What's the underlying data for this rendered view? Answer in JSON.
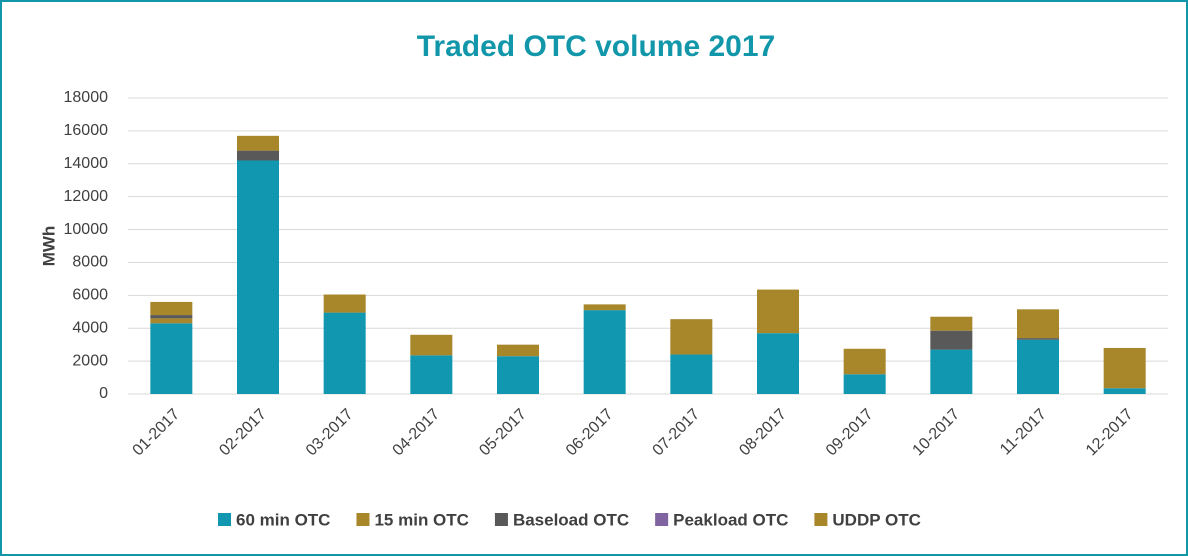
{
  "chart_data": {
    "type": "stacked_bar",
    "title": "Traded OTC volume 2017",
    "y_label": "MWh",
    "categories": [
      "01-2017",
      "02-2017",
      "03-2017",
      "04-2017",
      "05-2017",
      "06-2017",
      "07-2017",
      "08-2017",
      "09-2017",
      "10-2017",
      "11-2017",
      "12-2017"
    ],
    "series": [
      {
        "name": "60 min OTC",
        "color": "#1197b0",
        "values": [
          4300,
          14200,
          4950,
          2350,
          2300,
          5100,
          2400,
          3700,
          1200,
          2700,
          3300,
          350
        ]
      },
      {
        "name": "15 min OTC",
        "color": "#a8862a",
        "values": [
          300,
          0,
          1100,
          1250,
          700,
          350,
          2150,
          2650,
          1550,
          0,
          0,
          2450
        ]
      },
      {
        "name": "Baseload OTC",
        "color": "#595959",
        "values": [
          200,
          600,
          0,
          0,
          0,
          0,
          0,
          0,
          0,
          1150,
          100,
          0
        ]
      },
      {
        "name": "Peakload OTC",
        "color": "#8064a2",
        "values": [
          0,
          0,
          0,
          0,
          0,
          0,
          0,
          0,
          0,
          0,
          0,
          0
        ]
      },
      {
        "name": "UDDP OTC",
        "color": "#a8862a",
        "values": [
          800,
          900,
          0,
          0,
          0,
          0,
          0,
          0,
          0,
          850,
          1750,
          0
        ]
      }
    ],
    "ylim": [
      0,
      18000
    ],
    "yticks": [
      0,
      2000,
      4000,
      6000,
      8000,
      10000,
      12000,
      14000,
      16000,
      18000
    ],
    "grid": true
  }
}
